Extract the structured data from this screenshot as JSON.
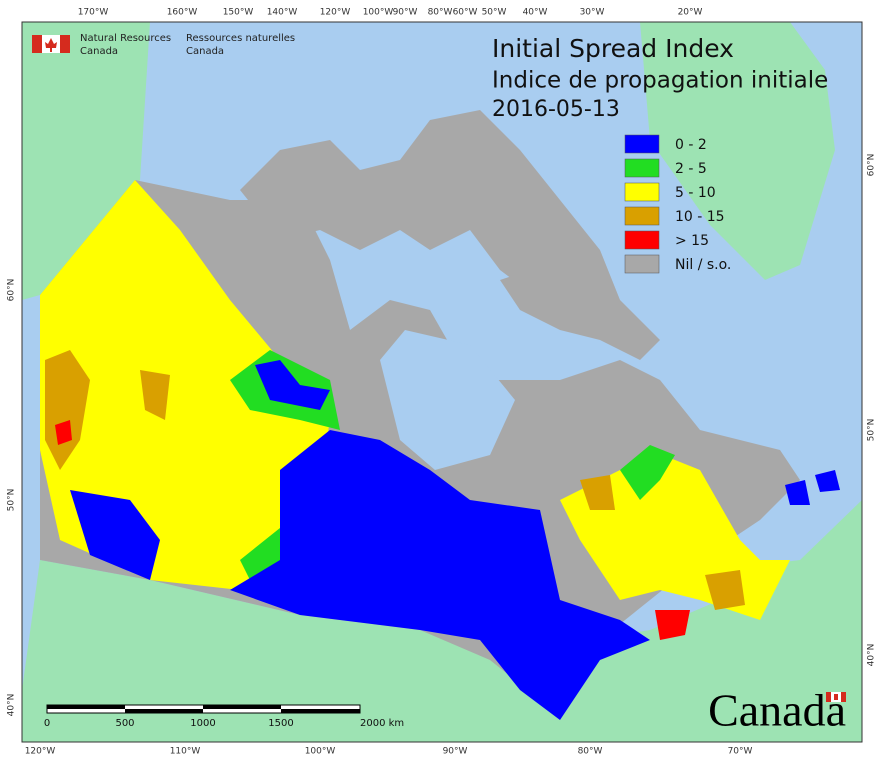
{
  "header": {
    "agency_en": [
      "Natural Resources",
      "Canada"
    ],
    "agency_fr": [
      "Ressources naturelles",
      "Canada"
    ]
  },
  "title": "Initial Spread Index",
  "subtitle": "Indice de propagation initiale",
  "date": "2016-05-13",
  "legend": [
    {
      "label": "0 - 2",
      "color": "#0000ff"
    },
    {
      "label": "2 - 5",
      "color": "#22dd22"
    },
    {
      "label": "5 - 10",
      "color": "#ffff00"
    },
    {
      "label": "10 - 15",
      "color": "#d9a000"
    },
    {
      "label": "> 15",
      "color": "#ff0000"
    },
    {
      "label": "Nil / s.o.",
      "color": "#a8a8a8"
    }
  ],
  "graticule": {
    "top": [
      "170°W",
      "160°W",
      "150°W",
      "140°W",
      "120°W",
      "100°W",
      "90°W",
      "80°W",
      "60°W",
      "50°W",
      "40°W",
      "30°W",
      "20°W"
    ],
    "bottom": [
      "120°W",
      "110°W",
      "100°W",
      "90°W",
      "80°W",
      "70°W"
    ],
    "left": [
      "60°N",
      "50°N",
      "40°N"
    ],
    "right": [
      "60°N",
      "50°N",
      "40°N"
    ]
  },
  "scale_bar": {
    "labels": [
      "0",
      "500",
      "1000",
      "1500",
      "2000 km"
    ]
  },
  "wordmark": "Canada"
}
